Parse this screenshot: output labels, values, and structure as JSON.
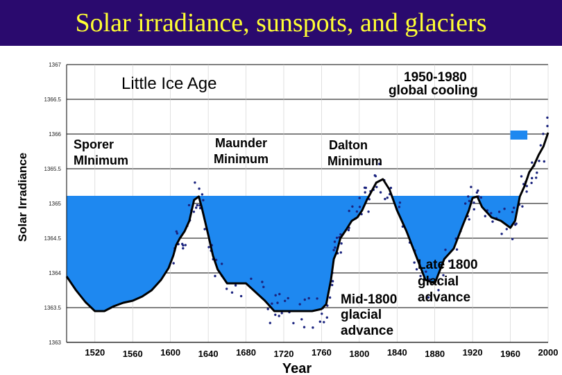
{
  "title": "Solar irradiance, sunspots, and glaciers",
  "chart_data": {
    "type": "line",
    "xlabel": "Year",
    "ylabel": "Solar Irradiance",
    "xlim": [
      1490,
      2000
    ],
    "ylim": [
      1363,
      1367
    ],
    "x_ticks": [
      "1520",
      "1560",
      "1600",
      "1640",
      "1680",
      "1720",
      "1760",
      "1800",
      "1840",
      "1880",
      "1920",
      "1960",
      "2000"
    ],
    "y_ticks": [
      "1363",
      "1363.5",
      "1364",
      "1364.5",
      "1365",
      "1365.5",
      "1366",
      "1366.5",
      "1367"
    ],
    "baseline": 1365.11,
    "grid": true,
    "series": [
      {
        "x": [
          1490,
          1500,
          1510,
          1520,
          1530,
          1540,
          1550,
          1560,
          1570,
          1580,
          1590,
          1598,
          1603,
          1606,
          1610,
          1615,
          1620,
          1625,
          1630,
          1633,
          1640,
          1645,
          1650,
          1660,
          1680,
          1700,
          1710,
          1715,
          1720,
          1730,
          1740,
          1750,
          1760,
          1765,
          1770,
          1773,
          1776,
          1780,
          1786,
          1792,
          1798,
          1803,
          1808,
          1812,
          1818,
          1825,
          1832,
          1840,
          1850,
          1860,
          1870,
          1880,
          1890,
          1900,
          1910,
          1916,
          1920,
          1925,
          1930,
          1940,
          1950,
          1960,
          1965,
          1970,
          1975,
          1980,
          1985,
          1990,
          1995,
          2000
        ],
        "y": [
          1363.95,
          1363.75,
          1363.58,
          1363.45,
          1363.45,
          1363.52,
          1363.57,
          1363.6,
          1363.66,
          1363.75,
          1363.9,
          1364.07,
          1364.25,
          1364.4,
          1364.5,
          1364.6,
          1364.75,
          1365.05,
          1365.1,
          1364.95,
          1364.55,
          1364.25,
          1364.05,
          1363.85,
          1363.85,
          1363.6,
          1363.45,
          1363.45,
          1363.45,
          1363.45,
          1363.45,
          1363.45,
          1363.48,
          1363.55,
          1363.9,
          1364.2,
          1364.3,
          1364.5,
          1364.62,
          1364.75,
          1364.8,
          1364.9,
          1365.05,
          1365.15,
          1365.3,
          1365.35,
          1365.2,
          1364.9,
          1364.6,
          1364.25,
          1363.9,
          1363.85,
          1364.2,
          1364.35,
          1364.7,
          1364.9,
          1365.08,
          1365.1,
          1364.95,
          1364.8,
          1364.75,
          1364.65,
          1364.75,
          1365.1,
          1365.25,
          1365.45,
          1365.55,
          1365.7,
          1365.82,
          1366.02
        ]
      }
    ],
    "annotations": [
      {
        "text": "Little Ice Age"
      },
      {
        "text": "1950-1980"
      },
      {
        "text": "global cooling"
      },
      {
        "text": "Sporer"
      },
      {
        "text": "MInimum"
      },
      {
        "text": "Maunder"
      },
      {
        "text": "Minimum"
      },
      {
        "text": "Dalton"
      },
      {
        "text": "Minimum"
      },
      {
        "text": "Late 1800"
      },
      {
        "text": "glacial"
      },
      {
        "text": "advance"
      },
      {
        "text": "Mid-1800"
      },
      {
        "text": "glacial"
      },
      {
        "text": "advance"
      }
    ]
  }
}
